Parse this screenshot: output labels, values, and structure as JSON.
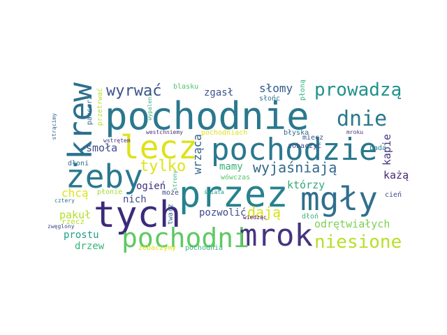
{
  "words": [
    {
      "text": "pochodnie",
      "color": "#2a788e"
    },
    {
      "text": "przez",
      "color": "#26828e"
    },
    {
      "text": "pochodzie",
      "color": "#2a788e"
    },
    {
      "text": "tych",
      "color": "#3b2a7a"
    },
    {
      "text": "mgły",
      "color": "#2f6f8e"
    },
    {
      "text": "mrok",
      "color": "#463480"
    },
    {
      "text": "żeby",
      "color": "#2a788e"
    },
    {
      "text": "lecz",
      "color": "#dde318"
    },
    {
      "text": "krew",
      "color": "#2d708e"
    },
    {
      "text": "pochodni",
      "color": "#5ec962"
    },
    {
      "text": "dnie",
      "color": "#2a788e"
    },
    {
      "text": "prowadzą",
      "color": "#21918c"
    },
    {
      "text": "niesione",
      "color": "#b8de29"
    },
    {
      "text": "wyrwać",
      "color": "#3b528b"
    },
    {
      "text": "wyjaśniają",
      "color": "#31688e"
    },
    {
      "text": "tylko",
      "color": "#dde318"
    },
    {
      "text": "dają",
      "color": "#d8e219"
    },
    {
      "text": "słomy",
      "color": "#2d5b8b"
    },
    {
      "text": "zgasł",
      "color": "#3b528b"
    },
    {
      "text": "smoła",
      "color": "#3e4a89"
    },
    {
      "text": "wrząca",
      "color": "#35608d"
    },
    {
      "text": "mamy",
      "color": "#3ab07a"
    },
    {
      "text": "kapie",
      "color": "#43387f"
    },
    {
      "text": "każą",
      "color": "#482878"
    },
    {
      "text": "którzy",
      "color": "#35a77a"
    },
    {
      "text": "ogień",
      "color": "#3e2f80"
    },
    {
      "text": "nich",
      "color": "#3e4a89"
    },
    {
      "text": "chcą",
      "color": "#dde318"
    },
    {
      "text": "pozwolić",
      "color": "#3e4a89"
    },
    {
      "text": "odrętwiałych",
      "color": "#7ad151"
    },
    {
      "text": "pakuł",
      "color": "#b5de2b"
    },
    {
      "text": "prostu",
      "color": "#1f9e89"
    },
    {
      "text": "drzew",
      "color": "#35b779"
    },
    {
      "text": "rzecz",
      "color": "#b5de2b"
    },
    {
      "text": "płonie",
      "color": "#a2da37"
    },
    {
      "text": "blasku",
      "color": "#4ac16d"
    },
    {
      "text": "słońc",
      "color": "#2c728e"
    },
    {
      "text": "płoną",
      "color": "#2fb47c"
    },
    {
      "text": "pancerz",
      "color": "#2f6b8e"
    },
    {
      "text": "przetrwać",
      "color": "#b5de2b"
    },
    {
      "text": "strącimy",
      "color": "#35608d"
    },
    {
      "text": "wypaleni",
      "color": "#3ab07a"
    },
    {
      "text": "westchniemy",
      "color": "#46327e"
    },
    {
      "text": "pochodniach",
      "color": "#dde318"
    },
    {
      "text": "błyska",
      "color": "#2f6b8e"
    },
    {
      "text": "mroku",
      "color": "#46327e"
    },
    {
      "text": "pada",
      "color": "#27808e"
    },
    {
      "text": "miecz",
      "color": "#3a538b"
    },
    {
      "text": "zobaczyć",
      "color": "#3e4a89"
    },
    {
      "text": "wstrętem",
      "color": "#46327e"
    },
    {
      "text": "dłoni",
      "color": "#31688e"
    },
    {
      "text": "strony",
      "color": "#3ab07a"
    },
    {
      "text": "wówczas",
      "color": "#54c568"
    },
    {
      "text": "może",
      "color": "#3e4a89"
    },
    {
      "text": "cień",
      "color": "#3e4a89"
    },
    {
      "text": "dłoń",
      "color": "#3ab07a"
    },
    {
      "text": "twarz",
      "color": "#31688e"
    },
    {
      "text": "świata",
      "color": "#1f9e89"
    },
    {
      "text": "wiedząc",
      "color": "#440154"
    },
    {
      "text": "cztery",
      "color": "#2c728e"
    },
    {
      "text": "zwęglony",
      "color": "#3e4a89"
    },
    {
      "text": "zobaczymy",
      "color": "#dde318"
    },
    {
      "text": "pochodnia",
      "color": "#3ab07a"
    }
  ]
}
